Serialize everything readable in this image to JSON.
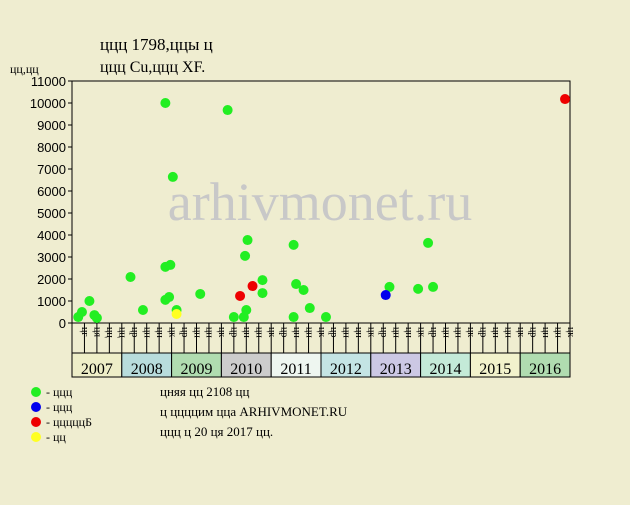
{
  "chart_data": {
    "type": "scatter",
    "title": "ццц 1798,ццы ц",
    "subtitle": "ццц Cu,ццц XF.",
    "y_label": "цц,цц",
    "watermark": "arhivmonet.ru",
    "xlim": [
      0,
      40
    ],
    "ylim": [
      0,
      11000
    ],
    "yticks": [
      0,
      1000,
      2000,
      3000,
      4000,
      5000,
      6000,
      7000,
      8000,
      9000,
      10000,
      11000
    ],
    "quarter_labels": [
      "цг",
      "ця",
      "цц",
      "цц",
      "цр",
      "цн",
      "цн",
      "цк",
      "цр",
      "цн",
      "цн",
      "цк",
      "цр",
      "цн",
      "цн",
      "цк",
      "цр",
      "цн",
      "цн",
      "цк",
      "цр",
      "цн",
      "цн",
      "цк",
      "цр",
      "цн",
      "цн",
      "цк",
      "цр",
      "цн",
      "цн",
      "цк",
      "цр",
      "цн",
      "цн",
      "цк",
      "цр",
      "цн",
      "цн",
      "цк"
    ],
    "years": [
      {
        "label": "2007",
        "color": "#eeeec8"
      },
      {
        "label": "2008",
        "color": "#b8dcdc"
      },
      {
        "label": "2009",
        "color": "#b0dcb0"
      },
      {
        "label": "2010",
        "color": "#cccccc"
      },
      {
        "label": "2011",
        "color": "#eef6f0"
      },
      {
        "label": "2012",
        "color": "#c4e4e4"
      },
      {
        "label": "2013",
        "color": "#ccc8e4"
      },
      {
        "label": "2014",
        "color": "#c4ead8"
      },
      {
        "label": "2015",
        "color": "#f2f2cc"
      },
      {
        "label": "2016",
        "color": "#b0dcb0"
      }
    ],
    "series": [
      {
        "name": "- ццц",
        "color": "#22ee22",
        "x": [
          0.5,
          0.8,
          1.4,
          1.8,
          2.0,
          4.7,
          5.7,
          7.5,
          7.5,
          7.5,
          7.9,
          7.8,
          8.1,
          8.4,
          10.3,
          12.5,
          13.0,
          13.8,
          14.0,
          13.9,
          14.1,
          15.3,
          15.3,
          17.8,
          17.8,
          18.0,
          18.6,
          19.1,
          20.4,
          25.5,
          27.8,
          28.6,
          29.0
        ],
        "values": [
          270,
          500,
          1000,
          360,
          230,
          2090,
          590,
          10000,
          1050,
          2550,
          2640,
          1180,
          6640,
          590,
          1320,
          9680,
          270,
          270,
          590,
          3050,
          3770,
          1950,
          1360,
          3550,
          270,
          1770,
          1500,
          680,
          270,
          1640,
          1550,
          3640,
          1640
        ]
      },
      {
        "name": "- ццц",
        "color": "#0000ee",
        "x": [
          25.2
        ],
        "values": [
          1270
        ]
      },
      {
        "name": "- цццццБ",
        "color": "#ee0000",
        "x": [
          13.5,
          14.5,
          39.6
        ],
        "values": [
          1230,
          1680,
          10180
        ]
      },
      {
        "name": "- цц",
        "color": "#ffff22",
        "x": [
          8.4
        ],
        "values": [
          410
        ]
      }
    ],
    "notes": [
      "цняя цц 2108 цц",
      "ц ццццим цца ARHIVMONET.RU",
      "ццц ц 20 ця 2017 цц."
    ]
  }
}
